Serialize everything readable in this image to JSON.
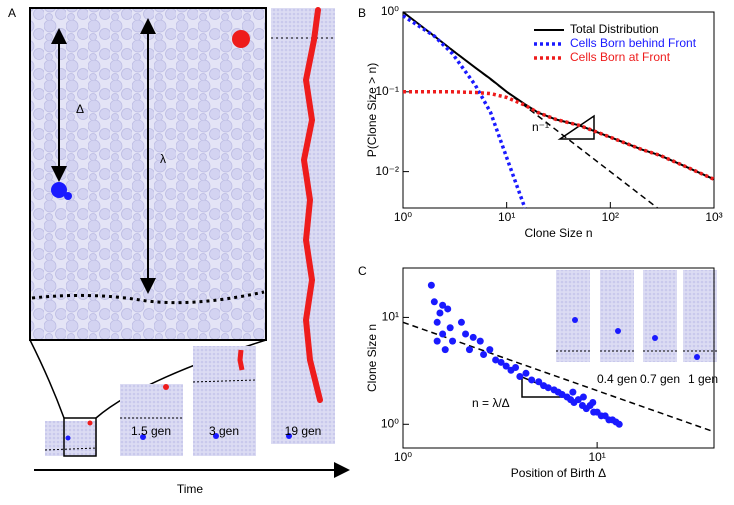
{
  "panel_labels": [
    "A",
    "B",
    "C"
  ],
  "panel_a": {
    "delta": "Δ",
    "lambda": "λ",
    "snapshots": [
      "1.5 gen",
      "3 gen",
      "19 gen"
    ],
    "time_label": "Time"
  },
  "chart_data": [
    {
      "type": "line",
      "xlabel": "Clone Size n",
      "ylabel": "P(Clone Size > n)",
      "log_x": true,
      "log_y": true,
      "xlim": [
        1,
        1000
      ],
      "ylim": [
        0.0035,
        1
      ],
      "xticks": [
        {
          "value": 1,
          "label": "10⁰"
        },
        {
          "value": 10,
          "label": "10¹"
        },
        {
          "value": 100,
          "label": "10²"
        },
        {
          "value": 1000,
          "label": "10³"
        }
      ],
      "yticks": [
        {
          "value": 1,
          "label": "10⁰"
        },
        {
          "value": 0.1,
          "label": "10⁻¹"
        },
        {
          "value": 0.01,
          "label": "10⁻²"
        }
      ],
      "x": [
        1,
        2,
        3,
        5,
        7,
        10,
        15,
        20,
        30,
        50,
        100,
        200,
        300,
        500,
        1000
      ],
      "series": [
        {
          "name": "Total Distribution",
          "color": "#000000",
          "values": [
            1,
            0.5,
            0.33,
            0.2,
            0.145,
            0.1,
            0.07,
            0.055,
            0.045,
            0.038,
            0.027,
            0.019,
            0.016,
            0.012,
            0.008
          ]
        },
        {
          "name": "Cells Born behind Front",
          "color": "#1a1aff",
          "values": [
            0.9,
            0.5,
            0.3,
            0.12,
            0.055,
            0.015,
            0.0035,
            null,
            null,
            null,
            null,
            null,
            null,
            null,
            null
          ]
        },
        {
          "name": "Cells Born at Front",
          "color": "#ee1c1c",
          "values": [
            0.1,
            0.1,
            0.1,
            0.098,
            0.095,
            0.085,
            0.068,
            0.055,
            0.045,
            0.038,
            0.027,
            0.019,
            0.016,
            0.012,
            0.008
          ]
        }
      ],
      "guide": {
        "x": [
          1,
          285
        ],
        "values": [
          1,
          0.0035
        ]
      },
      "annotation": "n⁻¹",
      "legend": "upper right"
    },
    {
      "type": "scatter",
      "xlabel": "Position of Birth Δ",
      "ylabel": "Clone Size n",
      "log_x": true,
      "log_y": true,
      "xlim": [
        1,
        40
      ],
      "ylim": [
        0.6,
        29
      ],
      "xticks": [
        {
          "value": 1,
          "label": "10⁰"
        },
        {
          "value": 10,
          "label": "10¹"
        }
      ],
      "yticks": [
        {
          "value": 1,
          "label": "10⁰"
        },
        {
          "value": 10,
          "label": "10¹"
        }
      ],
      "color": "#1a1aff",
      "x": [
        1.4,
        1.45,
        1.5,
        1.55,
        1.6,
        1.65,
        1.7,
        1.5,
        1.6,
        1.75,
        1.8,
        2.0,
        2.1,
        2.2,
        2.3,
        2.5,
        2.6,
        2.8,
        3.0,
        3.2,
        3.4,
        3.6,
        3.8,
        4.0,
        4.3,
        4.6,
        5.0,
        5.3,
        5.6,
        6.0,
        6.3,
        6.6,
        7.0,
        7.3,
        7.6,
        8.0,
        8.4,
        8.8,
        9.2,
        9.6,
        10,
        10.5,
        11,
        11.5,
        12,
        12.5,
        13,
        7.5,
        8.5,
        9.5
      ],
      "values": [
        20,
        14,
        6,
        11,
        13,
        5,
        12,
        9,
        7,
        8,
        6,
        9,
        7,
        5,
        6.5,
        6,
        4.5,
        5,
        4,
        3.8,
        3.5,
        3.2,
        3.4,
        2.8,
        3,
        2.6,
        2.5,
        2.3,
        2.2,
        2.1,
        2.0,
        1.9,
        1.8,
        1.7,
        1.6,
        1.7,
        1.5,
        1.4,
        1.5,
        1.3,
        1.3,
        1.2,
        1.2,
        1.1,
        1.1,
        1.05,
        1.0,
        2.0,
        1.8,
        1.6
      ],
      "guide": {
        "x": [
          1,
          40
        ],
        "values": [
          9,
          0.85
        ]
      },
      "annotation": "n = λ/Δ",
      "inset_labels": [
        "0.4 gen",
        "0.7 gen",
        "1 gen"
      ]
    }
  ]
}
